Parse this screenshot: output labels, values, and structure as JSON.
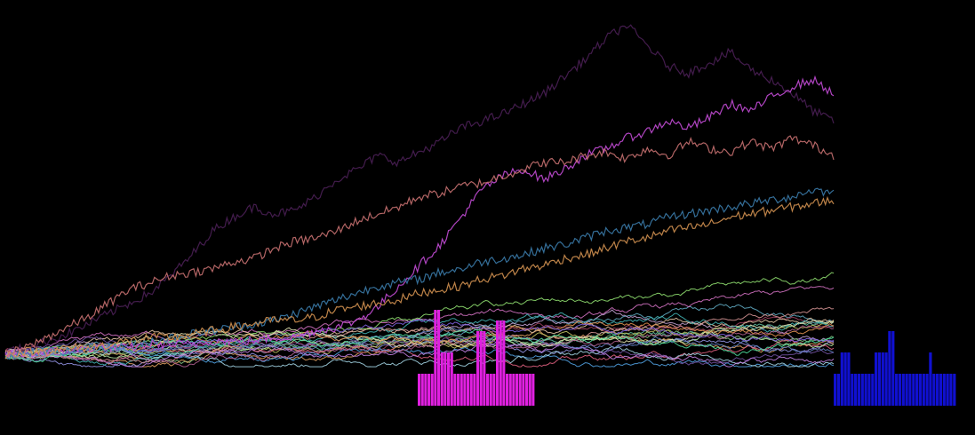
{
  "chart_data": {
    "type": "line",
    "x_range": [
      0,
      1000
    ],
    "y_range": [
      0,
      100
    ],
    "grid": false,
    "legend": "none",
    "background": "#000000",
    "series_count": 30,
    "highlight_series": [
      {
        "color": "#4a1f55",
        "values": [
          5,
          6,
          8,
          10,
          13,
          16,
          19,
          22,
          27,
          33,
          40,
          44,
          47,
          45,
          46,
          50,
          55,
          58,
          62,
          60,
          63,
          66,
          70,
          72,
          74,
          77,
          80,
          85,
          90,
          96,
          100,
          94,
          88,
          86,
          89,
          92,
          87,
          84,
          80,
          75,
          72
        ]
      },
      {
        "color": "#c34bd6",
        "values": [
          4,
          4,
          5,
          5,
          6,
          6,
          6,
          7,
          7,
          7,
          8,
          8,
          8,
          9,
          9,
          11,
          12,
          14,
          18,
          24,
          30,
          36,
          44,
          52,
          56,
          58,
          55,
          58,
          62,
          64,
          67,
          69,
          72,
          70,
          73,
          77,
          75,
          79,
          82,
          84,
          80
        ]
      },
      {
        "color": "#c77070",
        "values": [
          4,
          6,
          9,
          12,
          15,
          19,
          23,
          25,
          27,
          28,
          29,
          31,
          32,
          35,
          37,
          38,
          40,
          43,
          45,
          47,
          50,
          51,
          53,
          54,
          56,
          58,
          60,
          60,
          62,
          63,
          61,
          64,
          62,
          66,
          64,
          63,
          66,
          64,
          67,
          65,
          62
        ]
      },
      {
        "color": "#3a7aa8",
        "values": [
          4,
          4,
          5,
          5,
          6,
          6,
          7,
          8,
          9,
          10,
          11,
          12,
          13,
          14,
          16,
          18,
          20,
          22,
          24,
          25,
          26,
          28,
          29,
          31,
          32,
          33,
          35,
          36,
          38,
          40,
          41,
          42,
          44,
          45,
          46,
          47,
          48,
          49,
          50,
          52,
          51
        ]
      },
      {
        "color": "#d09050",
        "values": [
          4,
          5,
          5,
          6,
          6,
          7,
          8,
          9,
          9,
          10,
          11,
          12,
          13,
          14,
          14,
          15,
          17,
          18,
          19,
          20,
          22,
          23,
          24,
          26,
          27,
          29,
          30,
          32,
          33,
          35,
          37,
          38,
          40,
          41,
          42,
          44,
          45,
          46,
          47,
          48,
          49
        ]
      }
    ],
    "histograms": [
      {
        "color": "#e020e0",
        "x_range": [
          470,
          602
        ],
        "counts": [
          3,
          3,
          3,
          3,
          3,
          9,
          9,
          5,
          5,
          5,
          5,
          3,
          3,
          3,
          3,
          3,
          3,
          3,
          7,
          7,
          7,
          3,
          3,
          3,
          8,
          8,
          8,
          3,
          3,
          3,
          3,
          3,
          3,
          3,
          3,
          3
        ]
      },
      {
        "color": "#1010d0",
        "x_range": [
          938,
          1076
        ],
        "counts": [
          3,
          3,
          5,
          5,
          5,
          3,
          3,
          3,
          3,
          3,
          3,
          3,
          5,
          5,
          5,
          5,
          7,
          7,
          3,
          3,
          3,
          3,
          3,
          3,
          3,
          3,
          3,
          3,
          5,
          3,
          3,
          3,
          3,
          3,
          3,
          3
        ]
      }
    ]
  }
}
